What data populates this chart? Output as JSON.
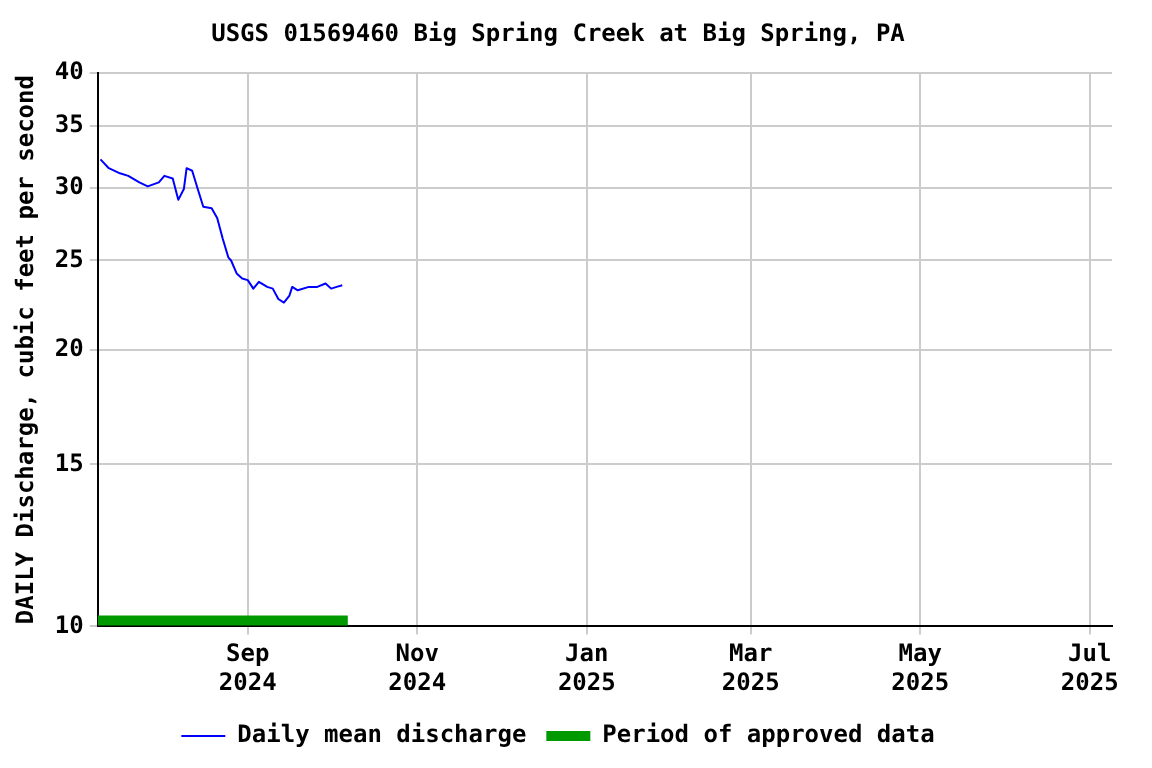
{
  "chart_data": {
    "type": "line",
    "title": "USGS 01569460 Big Spring Creek at Big Spring, PA",
    "ylabel": "DAILY Discharge, cubic feet per second",
    "series": [
      {
        "name": "Daily mean discharge",
        "color": "#0000ff",
        "x": [
          "2024-07-10",
          "2024-07-13",
          "2024-07-17",
          "2024-07-20",
          "2024-07-24",
          "2024-07-27",
          "2024-07-31",
          "2024-08-02",
          "2024-08-05",
          "2024-08-07",
          "2024-08-09",
          "2024-08-10",
          "2024-08-12",
          "2024-08-14",
          "2024-08-16",
          "2024-08-19",
          "2024-08-21",
          "2024-08-23",
          "2024-08-25",
          "2024-08-26",
          "2024-08-28",
          "2024-08-30",
          "2024-09-01",
          "2024-09-03",
          "2024-09-05",
          "2024-09-08",
          "2024-09-10",
          "2024-09-12",
          "2024-09-14",
          "2024-09-16",
          "2024-09-17",
          "2024-09-19",
          "2024-09-23",
          "2024-09-26",
          "2024-09-29",
          "2024-10-01",
          "2024-10-03",
          "2024-10-05"
        ],
        "values": [
          32.2,
          31.5,
          31.1,
          30.9,
          30.4,
          30.1,
          30.4,
          30.9,
          30.7,
          29.1,
          29.9,
          31.5,
          31.3,
          29.9,
          28.6,
          28.5,
          27.8,
          26.4,
          25.2,
          25.0,
          24.2,
          23.9,
          23.8,
          23.3,
          23.7,
          23.4,
          23.3,
          22.7,
          22.5,
          22.9,
          23.4,
          23.2,
          23.4,
          23.4,
          23.6,
          23.3,
          23.4,
          23.5
        ]
      },
      {
        "name": "Period of approved data",
        "color": "#009900",
        "x": [
          "2024-07-09",
          "2024-10-07"
        ],
        "values": [
          10.15,
          10.15
        ]
      }
    ],
    "xlim": [
      "2024-07-09",
      "2025-07-09"
    ],
    "xticks": [
      {
        "value": "2024-09-01",
        "label": "Sep 2024"
      },
      {
        "value": "2024-11-01",
        "label": "Nov 2024"
      },
      {
        "value": "2025-01-01",
        "label": "Jan 2025"
      },
      {
        "value": "2025-03-01",
        "label": "Mar 2025"
      },
      {
        "value": "2025-05-01",
        "label": "May 2025"
      },
      {
        "value": "2025-07-01",
        "label": "Jul 2025"
      }
    ],
    "ylim": [
      10,
      40
    ],
    "yticks": [
      10,
      15,
      20,
      25,
      30,
      35,
      40
    ],
    "log": "y",
    "grid": true,
    "legend": "bottom",
    "marker": "none",
    "line_style": "solid"
  }
}
